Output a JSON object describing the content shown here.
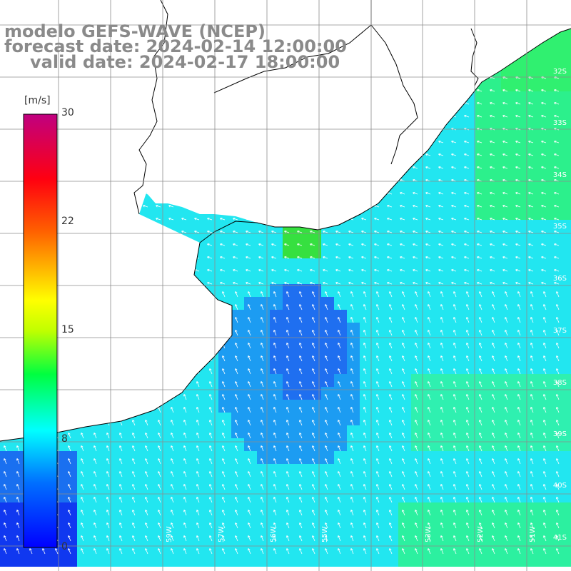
{
  "title": {
    "line1": "modelo GEFS-WAVE (NCEP)",
    "line2": "forecast date: 2024-02-14 12:00:00",
    "line3": "valid date: 2024-02-17 18:00:00"
  },
  "colorbar": {
    "units": "[m/s]",
    "ticks": [
      "30",
      "22",
      "15",
      "8",
      "0"
    ],
    "tick_values": [
      30,
      22,
      15,
      8,
      0
    ],
    "range": [
      0,
      30
    ],
    "colors": [
      "#0000ff",
      "#00a0ff",
      "#00ffff",
      "#00ff60",
      "#40ff00",
      "#c0ff00",
      "#ffff00",
      "#ffa000",
      "#ff3000",
      "#ff0030",
      "#c00080"
    ]
  },
  "lat_labels": [
    "31S",
    "32S",
    "33S",
    "34S",
    "35S",
    "36S",
    "37S",
    "38S",
    "39S",
    "40S",
    "41S"
  ],
  "lon_labels": [
    "59W",
    "57W",
    "56W",
    "55W",
    "53W",
    "52W",
    "51W"
  ],
  "colors": {
    "land": "#ffffff",
    "grid": "#8c8c8c",
    "coast": "#000000",
    "arrow": "#ffffff",
    "title": "#8a8a8a"
  }
}
